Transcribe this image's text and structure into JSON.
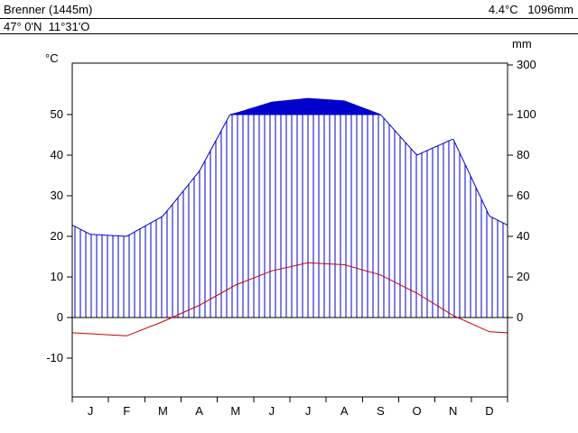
{
  "header": {
    "station": "Brenner (1445m)",
    "coordinates": "47° 0'N  11°31'O",
    "summary": "4.4°C   1096mm"
  },
  "chart_data": {
    "type": "line",
    "subtype": "walter-lieth-climate-diagram",
    "title": "Brenner (1445m)",
    "subtitle": "47° 0'N 11°31'O",
    "mean_annual_temperature_c": 4.4,
    "annual_precipitation_mm": 1096,
    "months": [
      "J",
      "F",
      "M",
      "A",
      "M",
      "J",
      "J",
      "A",
      "S",
      "O",
      "N",
      "D"
    ],
    "series": [
      {
        "name": "temperature_c",
        "values": [
          -4,
          -4.5,
          -1,
          3,
          8,
          11.5,
          13.5,
          13,
          10.5,
          6,
          0.5,
          -3.5
        ]
      },
      {
        "name": "precipitation_mm",
        "values": [
          41,
          40,
          50,
          72,
          105,
          150,
          165,
          155,
          100,
          80,
          88,
          50
        ]
      }
    ],
    "temp_axis": {
      "label": "°C",
      "ticks": [
        -10,
        0,
        10,
        20,
        30,
        40,
        50
      ]
    },
    "precip_axis": {
      "label": "mm",
      "ticks": [
        0,
        20,
        40,
        60,
        80,
        100,
        300
      ]
    },
    "axis_alignment": "10°C = 20mm; precipitation above 100mm compressed and filled solid",
    "legend_position": "none",
    "grid": "off",
    "colors": {
      "precipitation": "#0000cc",
      "temperature": "#cc0000",
      "frame": "#000000",
      "background": "#ffffff"
    }
  }
}
